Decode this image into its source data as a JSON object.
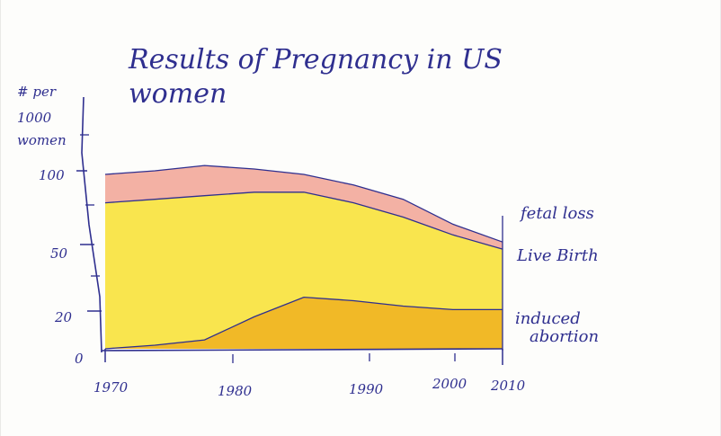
{
  "chart_data": {
    "type": "area",
    "title_line1": "Results of Pregnancy in US",
    "title_line2": "women",
    "ylabel_lines": [
      "# per",
      "1000",
      "women"
    ],
    "x_tick_labels": [
      "1970",
      "1980",
      "1990",
      "2000",
      "2010"
    ],
    "y_tick_labels": [
      "0",
      "20",
      "50",
      "100"
    ],
    "x": [
      1970,
      1975,
      1980,
      1985,
      1990,
      1995,
      2000,
      2005,
      2010
    ],
    "series": [
      {
        "name": "induced abortion",
        "values": [
          0,
          2,
          5,
          18,
          29,
          27,
          24,
          22,
          22
        ]
      },
      {
        "name": "Live Birth",
        "values": [
          82,
          84,
          86,
          88,
          88,
          82,
          74,
          64,
          56
        ]
      },
      {
        "name": "fetal loss",
        "values": [
          98,
          100,
          103,
          101,
          98,
          92,
          84,
          70,
          60
        ]
      }
    ],
    "ylim": [
      0,
      100
    ],
    "colors": {
      "induced abortion": "#f0b423",
      "Live Birth": "#f9e445",
      "fetal loss": "#f2a99a",
      "ink": "#2f2f8f"
    }
  }
}
